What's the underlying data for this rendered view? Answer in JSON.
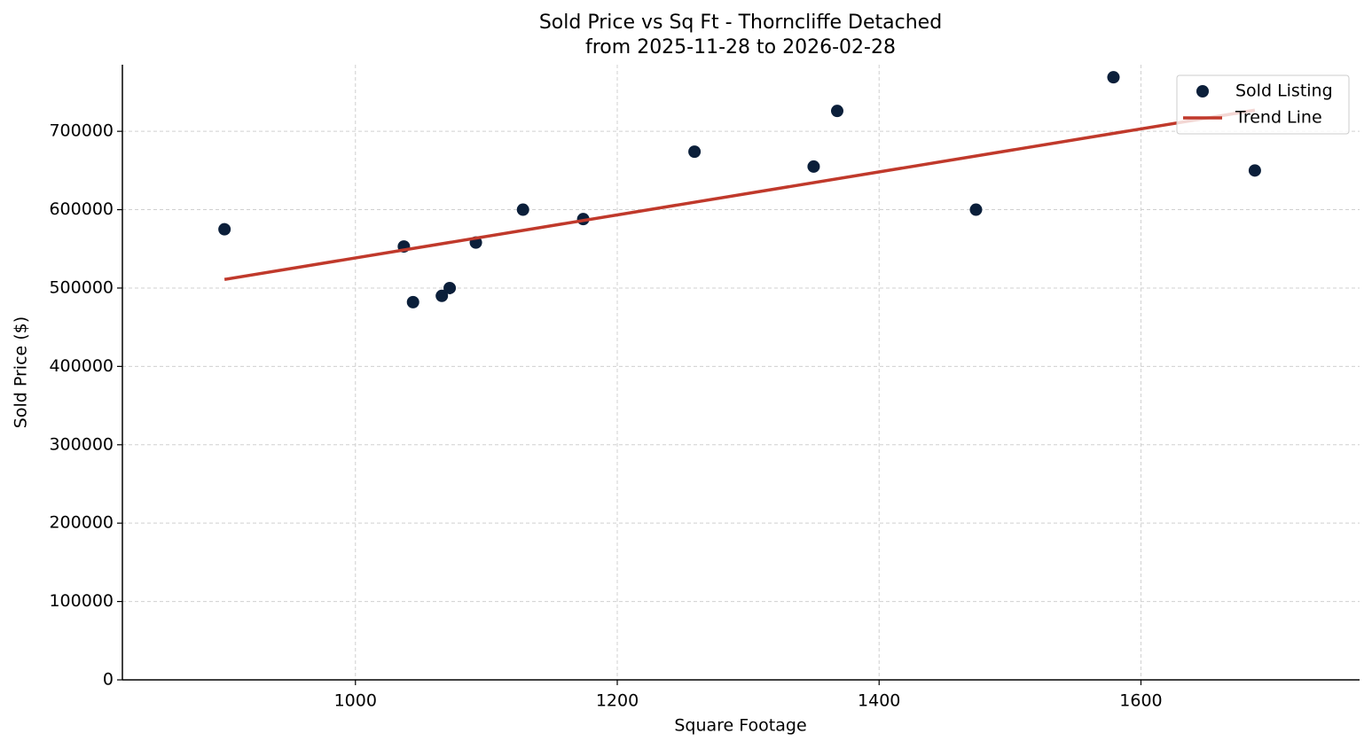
{
  "chart_data": {
    "type": "scatter",
    "title": "Sold Price vs Sq Ft - Thorncliffe Detached",
    "subtitle": "from 2025-11-28 to 2026-02-28",
    "x_label": "Square Footage",
    "y_label": "Sold Price ($)",
    "xlim": [
      822,
      1767
    ],
    "ylim": [
      0,
      785000
    ],
    "xticks": [
      1000,
      1200,
      1400,
      1600
    ],
    "yticks": [
      0,
      100000,
      200000,
      300000,
      400000,
      500000,
      600000,
      700000
    ],
    "grid": true,
    "legend": "upper right",
    "series": [
      {
        "name": "Sold Listing",
        "type": "scatter",
        "color": "#0b1f3a",
        "x": [
          900,
          1037,
          1044,
          1066,
          1072,
          1092,
          1128,
          1174,
          1259,
          1350,
          1368,
          1474,
          1579,
          1687
        ],
        "values": [
          575000,
          553000,
          482000,
          490000,
          500000,
          558000,
          600000,
          588000,
          674000,
          655000,
          726000,
          600000,
          769000,
          650000
        ]
      },
      {
        "name": "Trend Line",
        "type": "line",
        "color": "#c0392b",
        "x": [
          900,
          1687
        ],
        "values": [
          511000,
          727000
        ]
      }
    ]
  }
}
